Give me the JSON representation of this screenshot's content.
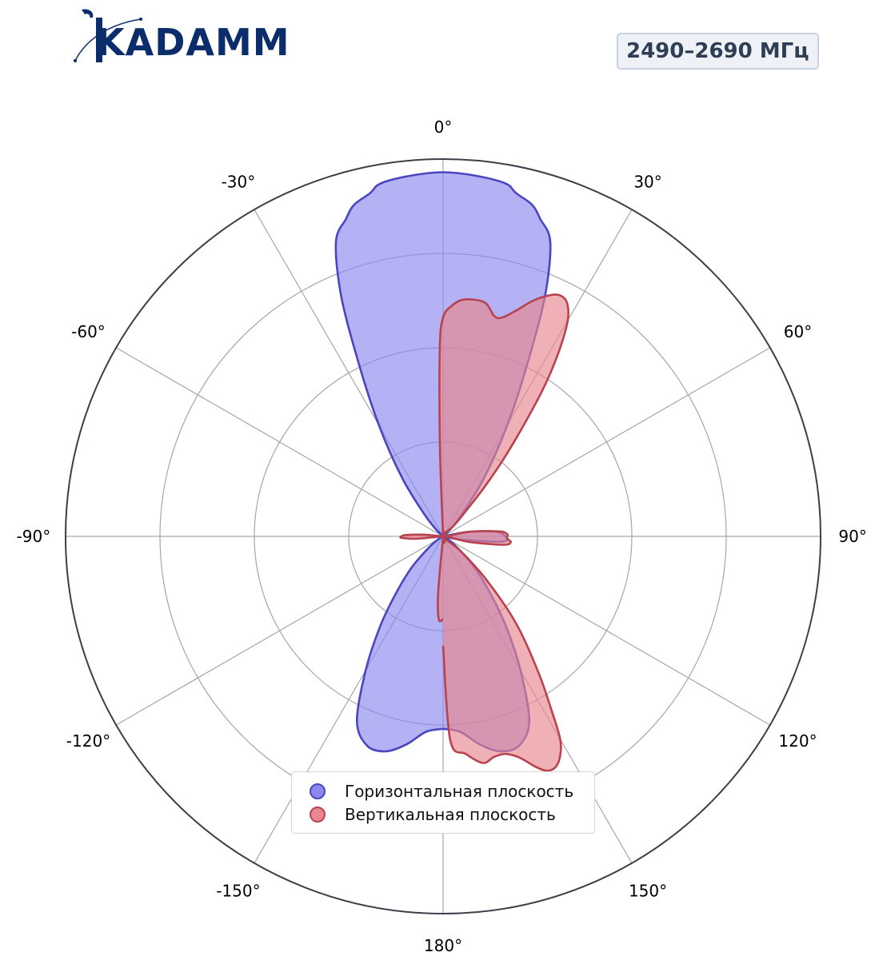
{
  "header": {
    "logo_text": "KADAMM",
    "band_label": "2490–2690 МГц"
  },
  "colors": {
    "horizontal": "#4b45c0",
    "horizontal_fill": "#8c88ee",
    "vertical": "#b8434f",
    "vertical_fill": "#e8878f",
    "logo": "#0b2d6b"
  },
  "chart_data": {
    "type": "polar",
    "angle_ticks": [
      "0°",
      "30°",
      "60°",
      "90°",
      "120°",
      "150°",
      "180°",
      "-150°",
      "-120°",
      "-90°",
      "-60°",
      "-30°"
    ],
    "radial_range": [
      0,
      1
    ],
    "radial_gridlines": [
      0.25,
      0.5,
      0.75,
      1.0
    ],
    "angular_gridlines_deg": [
      0,
      30,
      60,
      90,
      120,
      150,
      180,
      -150,
      -120,
      -90,
      -60,
      -30
    ],
    "legend_position": "bottom-center",
    "series": [
      {
        "name": "Горизонтальная плоскость",
        "key": "horizontal",
        "points": [
          [
            -180,
            0.51
          ],
          [
            -175,
            0.52
          ],
          [
            -170,
            0.56
          ],
          [
            -165,
            0.59
          ],
          [
            -160,
            0.59
          ],
          [
            -155,
            0.54
          ],
          [
            -150,
            0.41
          ],
          [
            -145,
            0.29
          ],
          [
            -140,
            0.19
          ],
          [
            -135,
            0.12
          ],
          [
            -130,
            0.06
          ],
          [
            -125,
            0.03
          ],
          [
            -120,
            0.01
          ],
          [
            -110,
            0.0
          ],
          [
            -100,
            0.0
          ],
          [
            -90,
            0.0
          ],
          [
            -80,
            0.0
          ],
          [
            -70,
            0.0
          ],
          [
            -60,
            0.0
          ],
          [
            -45,
            0.03
          ],
          [
            -40,
            0.08
          ],
          [
            -35,
            0.19
          ],
          [
            -30,
            0.34
          ],
          [
            -26,
            0.51
          ],
          [
            -23,
            0.69
          ],
          [
            -20,
            0.83
          ],
          [
            -17,
            0.88
          ],
          [
            -15,
            0.91
          ],
          [
            -12,
            0.93
          ],
          [
            -10,
            0.95
          ],
          [
            -5,
            0.96
          ],
          [
            0,
            0.965
          ],
          [
            5,
            0.96
          ],
          [
            10,
            0.95
          ],
          [
            12,
            0.93
          ],
          [
            15,
            0.91
          ],
          [
            17,
            0.88
          ],
          [
            20,
            0.83
          ],
          [
            23,
            0.69
          ],
          [
            26,
            0.51
          ],
          [
            30,
            0.34
          ],
          [
            35,
            0.19
          ],
          [
            40,
            0.08
          ],
          [
            45,
            0.03
          ],
          [
            60,
            0.0
          ],
          [
            70,
            0.0
          ],
          [
            80,
            0.07
          ],
          [
            85,
            0.14
          ],
          [
            90,
            0.165
          ],
          [
            95,
            0.16
          ],
          [
            100,
            0.05
          ],
          [
            110,
            0.0
          ],
          [
            120,
            0.01
          ],
          [
            125,
            0.03
          ],
          [
            130,
            0.06
          ],
          [
            135,
            0.12
          ],
          [
            140,
            0.19
          ],
          [
            145,
            0.29
          ],
          [
            150,
            0.41
          ],
          [
            155,
            0.54
          ],
          [
            160,
            0.59
          ],
          [
            165,
            0.59
          ],
          [
            170,
            0.56
          ],
          [
            175,
            0.52
          ],
          [
            180,
            0.51
          ]
        ]
      },
      {
        "name": "Вертикальная плоскость",
        "key": "vertical",
        "points": [
          [
            -180,
            0.22
          ],
          [
            -177,
            0.22
          ],
          [
            -175,
            0.15
          ],
          [
            -150,
            0.0
          ],
          [
            -120,
            0.0
          ],
          [
            -95,
            0.07
          ],
          [
            -92,
            0.11
          ],
          [
            -90,
            0.11
          ],
          [
            -88,
            0.1
          ],
          [
            -85,
            0.05
          ],
          [
            -60,
            0.0
          ],
          [
            -30,
            0.0
          ],
          [
            -2,
            0.24
          ],
          [
            -1,
            0.5
          ],
          [
            0,
            0.58
          ],
          [
            2,
            0.61
          ],
          [
            5,
            0.63
          ],
          [
            10,
            0.63
          ],
          [
            13,
            0.6
          ],
          [
            15,
            0.6
          ],
          [
            18,
            0.63
          ],
          [
            21,
            0.67
          ],
          [
            24,
            0.7
          ],
          [
            26,
            0.71
          ],
          [
            28,
            0.7
          ],
          [
            30,
            0.66
          ],
          [
            32,
            0.58
          ],
          [
            34,
            0.48
          ],
          [
            36,
            0.36
          ],
          [
            38,
            0.26
          ],
          [
            40,
            0.17
          ],
          [
            42,
            0.09
          ],
          [
            45,
            0.04
          ],
          [
            60,
            0.0
          ],
          [
            80,
            0.07
          ],
          [
            85,
            0.15
          ],
          [
            88,
            0.17
          ],
          [
            90,
            0.17
          ],
          [
            92,
            0.17
          ],
          [
            95,
            0.18
          ],
          [
            98,
            0.16
          ],
          [
            102,
            0.07
          ],
          [
            110,
            0.0
          ],
          [
            130,
            0.06
          ],
          [
            135,
            0.16
          ],
          [
            140,
            0.3
          ],
          [
            145,
            0.44
          ],
          [
            148,
            0.54
          ],
          [
            150,
            0.62
          ],
          [
            152,
            0.66
          ],
          [
            154,
            0.68
          ],
          [
            156,
            0.68
          ],
          [
            158,
            0.66
          ],
          [
            161,
            0.62
          ],
          [
            164,
            0.6
          ],
          [
            167,
            0.6
          ],
          [
            170,
            0.61
          ],
          [
            174,
            0.58
          ],
          [
            178,
            0.54
          ],
          [
            180,
            0.29
          ]
        ]
      }
    ]
  },
  "legend": {
    "items": [
      "Горизонтальная плоскость",
      "Вертикальная плоскость"
    ]
  }
}
